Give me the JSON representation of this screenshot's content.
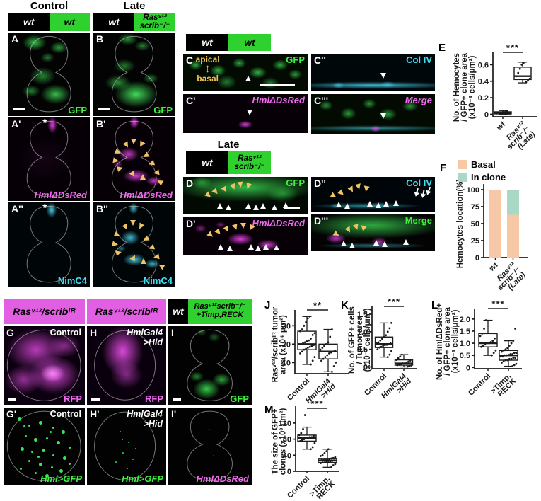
{
  "colors": {
    "header_green": "#2fd12f",
    "header_magenta": "#e25ee2",
    "gfp_green": "#3ef23e",
    "dsred_magenta": "#f06af0",
    "cyan": "#40dff2",
    "arrowhead_yellow": "#f0c465",
    "basal_fill": "#f6c8a6",
    "in_clone_fill": "#a9d9c4"
  },
  "headers": {
    "control": "Control",
    "late": "Late",
    "late2": "Late",
    "bar_A": {
      "left": "wt",
      "right": "wt"
    },
    "bar_B": {
      "left": "wt",
      "right": "Rasᵛ¹²\nscrib⁻/⁻"
    },
    "bar_C": {
      "left": "wt",
      "right": "wt"
    },
    "bar_D": {
      "left": "wt",
      "right": "Rasᵛ¹²\nscrib⁻/⁻"
    },
    "bar_G": "Rasᵛ¹²/scribᴵᴿ",
    "bar_H": "Rasᵛ¹²/scribᴵᴿ",
    "bar_I": {
      "left": "wt",
      "right": "Rasᵛ¹²scrib⁻/⁻\n+Timp,RECK"
    }
  },
  "panels": {
    "A": {
      "label": "A",
      "marker": "GFP",
      "marker_color": "#3ef23e"
    },
    "B": {
      "label": "B",
      "marker": "GFP",
      "marker_color": "#3ef23e"
    },
    "Ap": {
      "label": "A'",
      "marker": "HmlΔDsRed",
      "marker_color": "#f06af0",
      "asterisk": "*"
    },
    "Bp": {
      "label": "B'",
      "marker": "HmlΔDsRed",
      "marker_color": "#f06af0"
    },
    "App": {
      "label": "A''",
      "marker": "NimC4",
      "marker_color": "#40dff2",
      "asterisk": "*"
    },
    "Bpp": {
      "label": "B''",
      "marker": "NimC4",
      "marker_color": "#40dff2"
    },
    "C": {
      "label": "C",
      "marker": "GFP",
      "marker_color": "#3ef23e",
      "apical": "apical",
      "arrow": "↕",
      "basal": "basal"
    },
    "Cp": {
      "label": "C'",
      "marker": "HmlΔDsRed",
      "marker_color": "#f06af0"
    },
    "Cpp": {
      "label": "C''",
      "marker": "Col IV",
      "marker_color": "#40dff2"
    },
    "Cppp": {
      "label": "C'''",
      "marker": "Merge",
      "marker_color": "#f06af0"
    },
    "D": {
      "label": "D",
      "marker": "GFP",
      "marker_color": "#3ef23e"
    },
    "Dp": {
      "label": "D'",
      "marker": "HmlΔDsRed",
      "marker_color": "#f06af0"
    },
    "Dpp": {
      "label": "D''",
      "marker": "Col IV",
      "marker_color": "#40dff2"
    },
    "Dppp": {
      "label": "D'''",
      "marker": "Merge",
      "marker_color": "#3ef23e"
    },
    "G": {
      "label": "G",
      "condition": "Control",
      "marker": "RFP",
      "marker_color": "#f06af0"
    },
    "H": {
      "label": "H",
      "condition": "HmlGal4\n>Hid",
      "marker": "RFP",
      "marker_color": "#f06af0"
    },
    "I": {
      "label": "I",
      "marker": "GFP",
      "marker_color": "#3ef23e"
    },
    "Gp": {
      "label": "G'",
      "condition": "Control",
      "marker": "Hml>GFP",
      "marker_color": "#3ef23e"
    },
    "Hp": {
      "label": "H'",
      "condition": "HmlGal4\n>Hid",
      "marker": "Hml>GFP",
      "marker_color": "#3ef23e"
    },
    "Ip": {
      "label": "I'",
      "marker": "HmlΔDsRed",
      "marker_color": "#f06af0"
    }
  },
  "chart_data": [
    {
      "id": "E",
      "panel_label": "E",
      "type": "box",
      "ylabel": "No. of Hemocytes\n/ GFP+ clone area\n(x10⁻³ cells/μm²)",
      "ylim": [
        -0.03,
        0.68
      ],
      "yticks": [
        0,
        0.2,
        0.4,
        0.6
      ],
      "ytick_labels": [
        "0",
        "0.2",
        "0.4",
        "0.6"
      ],
      "sig": "***",
      "categories": [
        {
          "lines": [
            "wt"
          ],
          "italic": true
        },
        {
          "lines": [
            "Rasᵛ¹²",
            "scrib⁻/⁻",
            "(Late)"
          ],
          "italic": true
        }
      ],
      "series": [
        {
          "name": "wt",
          "box": {
            "whislo": 0,
            "q1": 0.005,
            "med": 0.015,
            "q3": 0.03,
            "whishi": 0.045
          },
          "points": [
            0.002,
            0.005,
            0.008,
            0.01,
            0.012,
            0.015,
            0.02,
            0.025,
            0.03,
            0.04
          ]
        },
        {
          "name": "Rasᵛ¹² scrib⁻/⁻ (Late)",
          "box": {
            "whislo": 0.38,
            "q1": 0.42,
            "med": 0.46,
            "q3": 0.57,
            "whishi": 0.63
          },
          "points": [
            0.39,
            0.41,
            0.43,
            0.46,
            0.5,
            0.55,
            0.6,
            0.62
          ]
        }
      ]
    },
    {
      "id": "F",
      "panel_label": "F",
      "type": "stacked_bar",
      "ylabel": "Hemocytes location(%)",
      "ylim": [
        0,
        100
      ],
      "yticks": [
        0,
        25,
        50,
        75,
        100
      ],
      "ytick_labels": [
        "0",
        "25",
        "50",
        "75",
        "100"
      ],
      "legend": [
        {
          "label": "Basal",
          "color": "#f6c8a6"
        },
        {
          "label": "In clone",
          "color": "#a9d9c4"
        }
      ],
      "categories": [
        {
          "lines": [
            "wt"
          ],
          "italic": true
        },
        {
          "lines": [
            "Rasᵛ¹²",
            "scrib⁻/⁻",
            "(Late)"
          ],
          "italic": true
        }
      ],
      "series": [
        {
          "name": "Basal",
          "values": [
            100,
            63
          ]
        },
        {
          "name": "In clone",
          "values": [
            0,
            37
          ]
        }
      ]
    },
    {
      "id": "J",
      "panel_label": "J",
      "type": "box",
      "ylabel": "Rasᵛ¹²/scribᴵᴿ tumor\narea (x10⁴ μm²)",
      "ylim": [
        4,
        35.5
      ],
      "yticks": [
        10,
        20,
        30
      ],
      "ytick_labels": [
        "10",
        "20",
        "30"
      ],
      "sig": "**",
      "categories": [
        {
          "lines": [
            "Control"
          ],
          "italic": false
        },
        {
          "lines": [
            "HmlGal4",
            ">Hid"
          ],
          "italic": true
        }
      ],
      "series": [
        {
          "name": "Control",
          "box": {
            "whislo": 9,
            "q1": 17,
            "med": 20,
            "q3": 27,
            "whishi": 35
          },
          "points": [
            9,
            11,
            13,
            15,
            16,
            17,
            17.5,
            18,
            18.5,
            19,
            19.5,
            20,
            20,
            20.5,
            21,
            21.5,
            22,
            23,
            25,
            26,
            27,
            28,
            30,
            32,
            34,
            35
          ]
        },
        {
          "name": "HmlGal4>Hid",
          "box": {
            "whislo": 5,
            "q1": 12,
            "med": 16,
            "q3": 20,
            "whishi": 28
          },
          "points": [
            5,
            8,
            10,
            11,
            12,
            13,
            14,
            15,
            15.5,
            16,
            16.5,
            17,
            18,
            19,
            20,
            21,
            24,
            28
          ]
        }
      ]
    },
    {
      "id": "K",
      "panel_label": "K",
      "type": "box",
      "ylabel": "No. of GFP+ cells\n/ Tumor area\n(x10⁻³ cells/μm²)",
      "ylim": [
        -0.05,
        1.58
      ],
      "yticks": [
        0,
        0.5,
        1.0,
        1.5
      ],
      "ytick_labels": [
        "0",
        "0.5",
        "1.0",
        "1.5"
      ],
      "sig": "***",
      "categories": [
        {
          "lines": [
            "Control"
          ],
          "italic": false
        },
        {
          "lines": [
            "HmlGal4",
            ">Hid"
          ],
          "italic": true
        }
      ],
      "series": [
        {
          "name": "Control",
          "box": {
            "whislo": 0.28,
            "q1": 0.55,
            "med": 0.65,
            "q3": 0.85,
            "whishi": 1.25
          },
          "points": [
            0.28,
            0.35,
            0.45,
            0.5,
            0.55,
            0.57,
            0.6,
            0.62,
            0.63,
            0.65,
            0.67,
            0.68,
            0.7,
            0.75,
            0.8,
            0.85,
            0.9,
            1.0,
            1.1,
            1.25
          ]
        },
        {
          "name": "HmlGal4>Hid",
          "box": {
            "whislo": 0,
            "q1": 0.05,
            "med": 0.1,
            "q3": 0.2,
            "whishi": 0.35
          },
          "points": [
            0.01,
            0.02,
            0.04,
            0.05,
            0.06,
            0.08,
            0.1,
            0.1,
            0.12,
            0.15,
            0.18,
            0.2,
            0.25,
            0.3,
            0.35
          ]
        }
      ]
    },
    {
      "id": "L",
      "panel_label": "L",
      "type": "box",
      "ylabel": "No. of HmlΔDsRed+\n/ GFP+ clone area\n(x10⁻³ cells/μm²)",
      "ylim": [
        -0.05,
        2.2
      ],
      "yticks": [
        0,
        0.5,
        1.0,
        1.5,
        2.0
      ],
      "ytick_labels": [
        "0",
        "0.5",
        "1.0",
        "1.5",
        "2.0"
      ],
      "sig": "***",
      "categories": [
        {
          "lines": [
            "Control"
          ],
          "italic": false
        },
        {
          "lines": [
            ">Timp,",
            "RECK"
          ],
          "italic": false
        }
      ],
      "series": [
        {
          "name": "Control",
          "box": {
            "whislo": 0.5,
            "q1": 0.85,
            "med": 1.0,
            "q3": 1.4,
            "whishi": 1.95
          },
          "points": [
            0.5,
            0.6,
            0.7,
            0.85,
            0.9,
            0.95,
            1.0,
            1.0,
            1.05,
            1.1,
            1.2,
            1.3,
            1.4,
            1.6,
            1.95
          ]
        },
        {
          "name": ">Timp,RECK",
          "box": {
            "whislo": 0.05,
            "q1": 0.3,
            "med": 0.5,
            "q3": 0.7,
            "whishi": 1.1
          },
          "points": [
            0.05,
            0.1,
            0.15,
            0.2,
            0.25,
            0.3,
            0.3,
            0.35,
            0.35,
            0.4,
            0.4,
            0.45,
            0.45,
            0.5,
            0.5,
            0.52,
            0.55,
            0.55,
            0.6,
            0.6,
            0.65,
            0.7,
            0.75,
            0.8,
            0.9,
            1.0,
            1.1,
            1.6
          ]
        }
      ]
    },
    {
      "id": "M",
      "panel_label": "M",
      "type": "box",
      "ylabel": "The size of GFP+\nclones (x10³ μm²)",
      "ylim": [
        0,
        148
      ],
      "yticks": [
        0,
        40,
        80,
        120
      ],
      "ytick_labels": [
        "0",
        "40",
        "80",
        "120"
      ],
      "sig": "***",
      "categories": [
        {
          "lines": [
            "Control"
          ],
          "italic": false
        },
        {
          "lines": [
            ">Timp,",
            "RECK"
          ],
          "italic": false
        }
      ],
      "series": [
        {
          "name": "Control",
          "box": {
            "whislo": 55,
            "q1": 75,
            "med": 83,
            "q3": 90,
            "whishi": 110
          },
          "points": [
            55,
            60,
            70,
            75,
            78,
            80,
            82,
            83,
            85,
            85,
            88,
            90,
            95,
            105,
            140
          ]
        },
        {
          "name": ">Timp,RECK",
          "box": {
            "whislo": 10,
            "q1": 22,
            "med": 27,
            "q3": 32,
            "whishi": 55
          },
          "points": [
            10,
            15,
            18,
            20,
            22,
            22,
            24,
            25,
            25,
            26,
            27,
            27,
            28,
            28,
            30,
            30,
            31,
            32,
            33,
            35,
            38,
            40,
            45,
            50,
            55
          ]
        }
      ]
    }
  ]
}
